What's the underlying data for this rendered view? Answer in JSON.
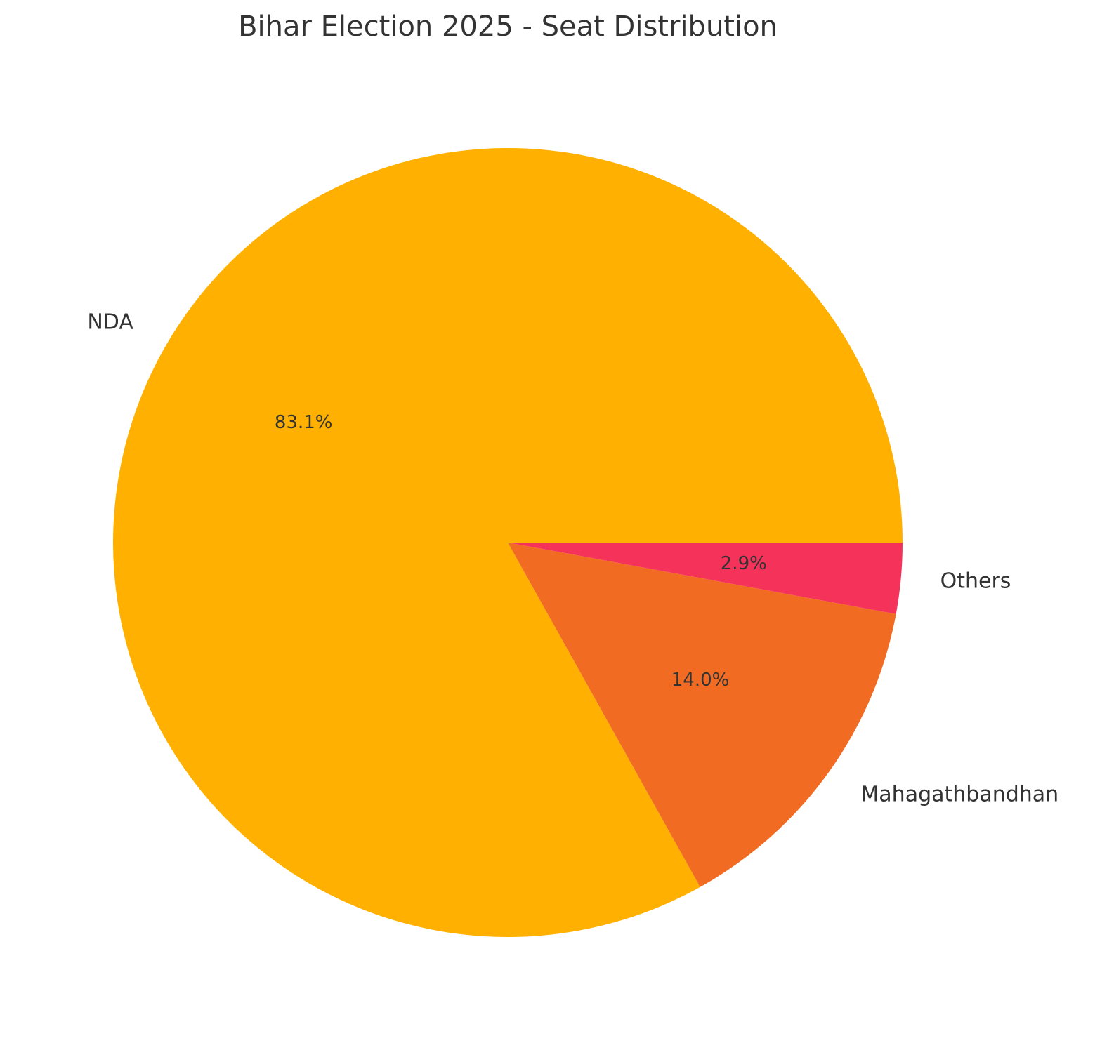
{
  "chart_data": {
    "type": "pie",
    "title": "Bihar Election 2025 - Seat Distribution",
    "categories": [
      "NDA",
      "Mahagathbandhan",
      "Others"
    ],
    "values": [
      83.1,
      14.0,
      2.9
    ],
    "value_labels": [
      "83.1%",
      "14.0%",
      "2.9%"
    ],
    "colors": [
      "#FFB000",
      "#F26B23",
      "#F5325A"
    ]
  }
}
